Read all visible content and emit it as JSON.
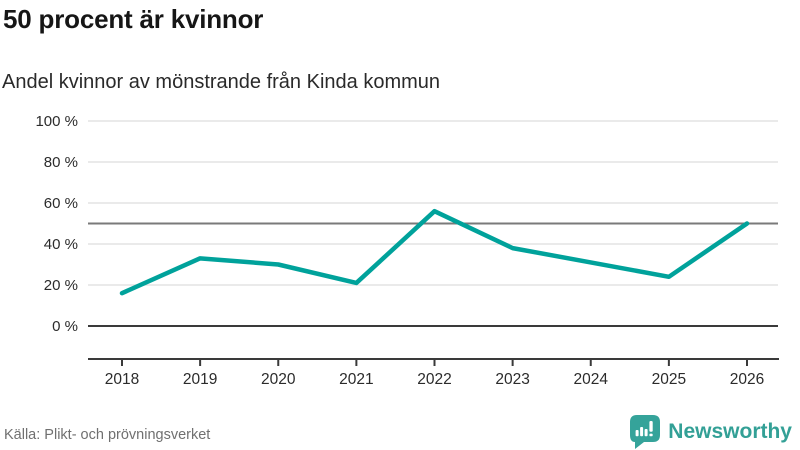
{
  "header": {
    "title": "50 procent är kvinnor",
    "subtitle": "Andel kvinnor av mönstrande från Kinda kommun"
  },
  "chart_data": {
    "type": "line",
    "x": [
      2018,
      2019,
      2020,
      2021,
      2022,
      2023,
      2024,
      2025,
      2026
    ],
    "series": [
      {
        "name": "Andel kvinnor av mönstrande",
        "values": [
          16,
          33,
          30,
          21,
          56,
          38,
          31,
          24,
          50
        ]
      }
    ],
    "title": "50 procent är kvinnor",
    "subtitle": "Andel kvinnor av mönstrande från Kinda kommun",
    "xlabel": "",
    "ylabel": "",
    "ylim": [
      0,
      100
    ],
    "yticks": [
      0,
      20,
      40,
      60,
      80,
      100
    ],
    "ytick_suffix": " %",
    "reference_line": 50,
    "grid": true,
    "legend": "none",
    "line_color": "#00a29b"
  },
  "colors": {
    "accent": "#00a29b",
    "logo_teal": "#35a39a",
    "reference_line": "#7a7a7a",
    "axis_dark": "#3a3a3a",
    "gridline": "#e3e3e3",
    "tick_text": "#2b2b2b",
    "muted_text": "#707070"
  },
  "footer": {
    "source": "Källa: Plikt- och prövningsverket",
    "logo_text": "Newsworthy"
  }
}
